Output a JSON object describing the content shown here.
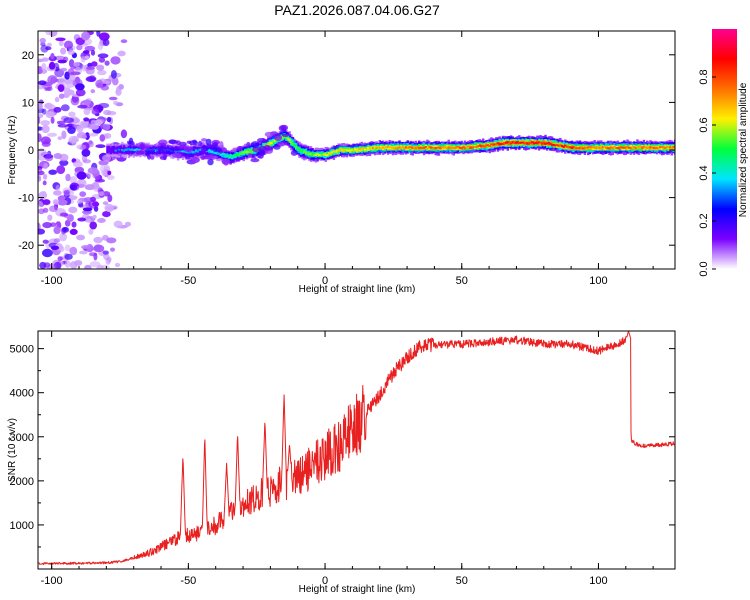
{
  "figure": {
    "title": "PAZ1.2026.087.04.06.G27"
  },
  "chart_data": [
    {
      "type": "heatmap",
      "name": "spectrogram",
      "title": "PAZ1.2026.087.04.06.G27",
      "xlabel": "Height of straight line (km)",
      "ylabel": "Frequency (Hz)",
      "xlim": [
        -105,
        128
      ],
      "ylim": [
        -25,
        25
      ],
      "x_ticks": [
        -100,
        -50,
        0,
        50,
        100
      ],
      "y_ticks": [
        -20,
        -10,
        0,
        10,
        20
      ],
      "colorbar": {
        "label": "Normalized spectral amplitude",
        "range": [
          0,
          1
        ],
        "ticks": [
          0.0,
          0.2,
          0.4,
          0.6,
          0.8
        ],
        "tick_labels": [
          "0.0",
          "0.2",
          "0.4",
          "0.6",
          "0.8"
        ],
        "colors": [
          "#ffffff",
          "#7a00ff",
          "#0000ff",
          "#00e5ff",
          "#00ff3c",
          "#fff000",
          "#ff7000",
          "#ff0000",
          "#ff0090"
        ]
      },
      "ridge": {
        "height_km": [
          -80,
          -70,
          -60,
          -50,
          -45,
          -40,
          -35,
          -30,
          -25,
          -20,
          -15,
          -10,
          -5,
          0,
          5,
          10,
          20,
          30,
          40,
          50,
          60,
          65,
          70,
          80,
          90,
          100,
          110,
          120,
          128
        ],
        "frequency_hz": [
          0.0,
          0.0,
          0.0,
          -0.5,
          0.0,
          -0.5,
          -1.5,
          -0.5,
          0.0,
          1.5,
          3.0,
          0.0,
          -1.0,
          -1.0,
          0.0,
          0.0,
          0.5,
          0.5,
          0.5,
          0.5,
          1.0,
          1.5,
          1.5,
          1.5,
          0.5,
          0.5,
          0.5,
          0.5,
          0.5
        ],
        "amplitude": [
          0.3,
          0.35,
          0.35,
          0.35,
          0.35,
          0.4,
          0.45,
          0.55,
          0.6,
          0.6,
          0.6,
          0.5,
          0.55,
          0.6,
          0.65,
          0.65,
          0.7,
          0.75,
          0.75,
          0.75,
          0.8,
          0.85,
          0.85,
          0.85,
          0.8,
          0.75,
          0.75,
          0.75,
          0.75
        ]
      },
      "noise_region_km": [
        -105,
        -72
      ]
    },
    {
      "type": "line",
      "name": "snr-profile",
      "xlabel": "Height of straight line (km)",
      "ylabel": "SNR (10 * v/v)",
      "xlim": [
        -105,
        128
      ],
      "ylim": [
        0,
        5400
      ],
      "x_ticks": [
        -100,
        -50,
        0,
        50,
        100
      ],
      "y_ticks": [
        1000,
        2000,
        3000,
        4000,
        5000
      ],
      "color": "#e82020",
      "series": [
        {
          "name": "SNR",
          "x": [
            -105,
            -90,
            -80,
            -75,
            -70,
            -65,
            -60,
            -55,
            -52,
            -50,
            -45,
            -40,
            -35,
            -30,
            -25,
            -20,
            -15,
            -10,
            -5,
            0,
            5,
            10,
            15,
            20,
            25,
            30,
            35,
            40,
            50,
            60,
            70,
            80,
            90,
            100,
            105,
            110,
            111,
            112,
            115,
            120,
            128
          ],
          "y": [
            120,
            130,
            140,
            170,
            250,
            350,
            500,
            650,
            800,
            750,
            850,
            1000,
            1250,
            1450,
            1650,
            1800,
            1950,
            2050,
            2300,
            2550,
            2800,
            3150,
            3550,
            3950,
            4450,
            4800,
            5050,
            5100,
            5100,
            5150,
            5200,
            5100,
            5100,
            4950,
            5050,
            5200,
            5200,
            2900,
            2800,
            2800,
            2850
          ],
          "spikes": [
            {
              "x": -52,
              "y": 2600
            },
            {
              "x": -44,
              "y": 3050
            },
            {
              "x": -36,
              "y": 2400
            },
            {
              "x": -32,
              "y": 3100
            },
            {
              "x": -22,
              "y": 3400
            },
            {
              "x": -15,
              "y": 3950
            },
            {
              "x": -13,
              "y": 2850
            },
            {
              "x": 111,
              "y": 5400
            }
          ]
        }
      ]
    }
  ]
}
